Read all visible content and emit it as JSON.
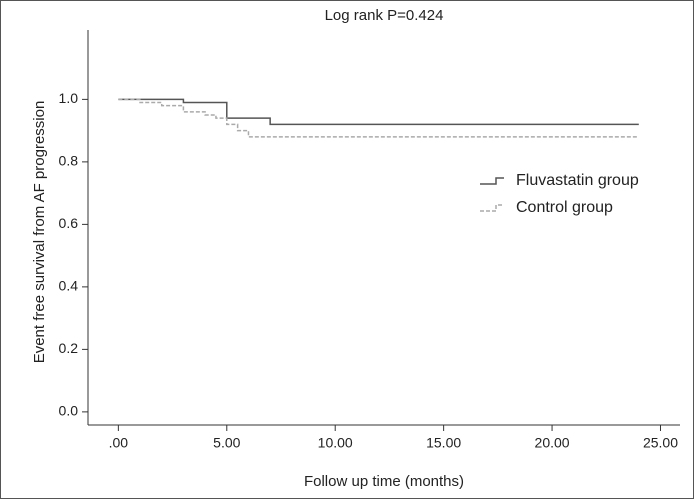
{
  "chart_data": {
    "type": "step",
    "title": "Log rank P=0.424",
    "x_label": "Follow up time (months)",
    "y_label": "Event free survival from AF progression",
    "series": [
      {
        "name": "Fluvastatin group",
        "color": "#555555",
        "line_style": "solid",
        "x": [
          0,
          3,
          5,
          7,
          24
        ],
        "values": [
          1.0,
          0.99,
          0.94,
          0.92,
          0.92
        ]
      },
      {
        "name": "Control group",
        "color": "#aaaaaa",
        "line_style": "dashed",
        "x": [
          0,
          1,
          2,
          3,
          4,
          4.5,
          5,
          5.5,
          6,
          24
        ],
        "values": [
          1.0,
          0.99,
          0.98,
          0.96,
          0.95,
          0.94,
          0.92,
          0.9,
          0.88,
          0.88
        ]
      }
    ],
    "xlim": [
      -1.4,
      25.9
    ],
    "ylim": [
      -0.042,
      1.19
    ],
    "xticks": [
      {
        "value": 0,
        "label": ".00"
      },
      {
        "value": 5,
        "label": "5.00"
      },
      {
        "value": 10,
        "label": "10.00"
      },
      {
        "value": 15,
        "label": "15.00"
      },
      {
        "value": 20,
        "label": "20.00"
      },
      {
        "value": 25,
        "label": "25.00"
      }
    ],
    "yticks": [
      {
        "value": 0,
        "label": "0.0"
      },
      0.2,
      0.4,
      0.6,
      0.8,
      {
        "value": 1,
        "label": "1.0"
      }
    ],
    "grid": false
  }
}
